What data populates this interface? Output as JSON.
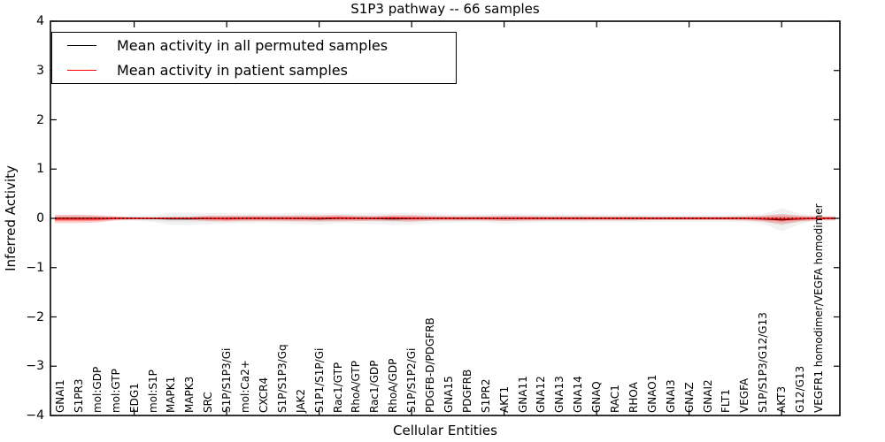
{
  "title": "S1P3 pathway -- 66 samples",
  "axes": {
    "xlabel": "Cellular Entities",
    "ylabel": "Inferred Activity",
    "ytick_labels": [
      "4",
      "3",
      "2",
      "1",
      "0",
      "−1",
      "−2",
      "−3",
      "−4"
    ],
    "ytick_values": [
      4,
      3,
      2,
      1,
      0,
      -1,
      -2,
      -3,
      -4
    ],
    "ylim": [
      -4,
      4
    ]
  },
  "legend": {
    "position": "upper left",
    "items": [
      {
        "label": "Mean activity in all permuted samples",
        "color": "#000000"
      },
      {
        "label": "Mean activity in patient samples",
        "color": "#ff0000"
      }
    ]
  },
  "colors": {
    "permuted_line": "#000000",
    "patient_line": "#ff0000",
    "permuted_band": "#9a9a9a",
    "patient_band": "#ff0000",
    "zero_line": "#000000",
    "frame": "#000000"
  },
  "chart_data": {
    "type": "line",
    "title": "S1P3 pathway -- 66 samples",
    "xlabel": "Cellular Entities",
    "ylabel": "Inferred Activity",
    "ylim": [
      -4,
      4
    ],
    "grid": false,
    "legend_position": "upper left",
    "categories": [
      "GNAI1",
      "S1PR3",
      "mol:GDP",
      "mol:GTP",
      "EDG1",
      "mol:S1P",
      "MAPK1",
      "MAPK3",
      "SRC",
      "S1P/S1P3/Gi",
      "mol:Ca2+",
      "CXCR4",
      "S1P/S1P3/Gq",
      "JAK2",
      "S1P1/S1P/Gi",
      "Rac1/GTP",
      "RhoA/GTP",
      "Rac1/GDP",
      "RhoA/GDP",
      "S1P/S1P2/Gi",
      "PDGFB-D/PDGFRB",
      "GNA15",
      "PDGFRB",
      "S1PR2",
      "AKT1",
      "GNA11",
      "GNA12",
      "GNA13",
      "GNA14",
      "GNAQ",
      "RAC1",
      "RHOA",
      "GNAO1",
      "GNAI3",
      "GNAZ",
      "GNAI2",
      "FLT1",
      "VEGFA",
      "S1P/S1P3/G12/G13",
      "AKT3",
      "G12/G13",
      "VEGFR1 homodimer/VEGFA homodimer"
    ],
    "x_major_tick_indices": [
      4,
      9,
      14,
      19,
      24,
      29,
      34,
      39
    ],
    "series": [
      {
        "name": "Mean activity in all permuted samples",
        "color": "#000000",
        "values": [
          0,
          0,
          0,
          0,
          0,
          -0.005,
          -0.01,
          -0.01,
          -0.005,
          0,
          0,
          0,
          0,
          -0.005,
          -0.01,
          0,
          0,
          -0.005,
          -0.01,
          -0.005,
          0,
          0,
          0,
          0,
          -0.005,
          0,
          0,
          0,
          0,
          0,
          0,
          0,
          0,
          0,
          0,
          0,
          0,
          0,
          -0.01,
          -0.03,
          -0.01,
          0
        ]
      },
      {
        "name": "Mean activity in patient samples",
        "color": "#ff0000",
        "values": [
          -0.01,
          -0.01,
          -0.01,
          0,
          0,
          0,
          0,
          0,
          0,
          -0.005,
          0,
          0,
          0,
          0,
          0,
          0.005,
          0,
          0,
          0.005,
          0,
          0,
          0,
          0,
          0,
          0,
          0,
          0,
          0,
          0,
          0,
          0,
          0,
          0,
          0,
          0,
          0,
          0,
          0,
          -0.005,
          -0.015,
          -0.005,
          0
        ]
      }
    ],
    "bands": [
      {
        "name": "permuted samples spread",
        "color": "#9a9a9a",
        "center_series": 0,
        "half_widths": [
          0.055,
          0.055,
          0.05,
          0.05,
          0.05,
          0.07,
          0.12,
          0.125,
          0.115,
          0.105,
          0.1,
          0.095,
          0.1,
          0.115,
          0.12,
          0.1,
          0.105,
          0.11,
          0.125,
          0.12,
          0.1,
          0.09,
          0.085,
          0.085,
          0.1,
          0.095,
          0.085,
          0.085,
          0.085,
          0.08,
          0.08,
          0.08,
          0.075,
          0.07,
          0.07,
          0.07,
          0.07,
          0.08,
          0.1,
          0.235,
          0.105,
          0.05
        ]
      },
      {
        "name": "patient samples spread",
        "color": "#ff0000",
        "center_series": 1,
        "half_widths": [
          0.085,
          0.085,
          0.075,
          0.04,
          0.025,
          0.02,
          0.025,
          0.03,
          0.055,
          0.06,
          0.055,
          0.055,
          0.055,
          0.06,
          0.06,
          0.065,
          0.055,
          0.05,
          0.06,
          0.065,
          0.05,
          0.045,
          0.045,
          0.045,
          0.055,
          0.05,
          0.045,
          0.045,
          0.045,
          0.04,
          0.04,
          0.04,
          0.035,
          0.035,
          0.035,
          0.035,
          0.035,
          0.04,
          0.06,
          0.1,
          0.06,
          0.04
        ]
      }
    ],
    "zero_line": {
      "value": 0,
      "style": "dotted",
      "color": "#000000"
    }
  }
}
